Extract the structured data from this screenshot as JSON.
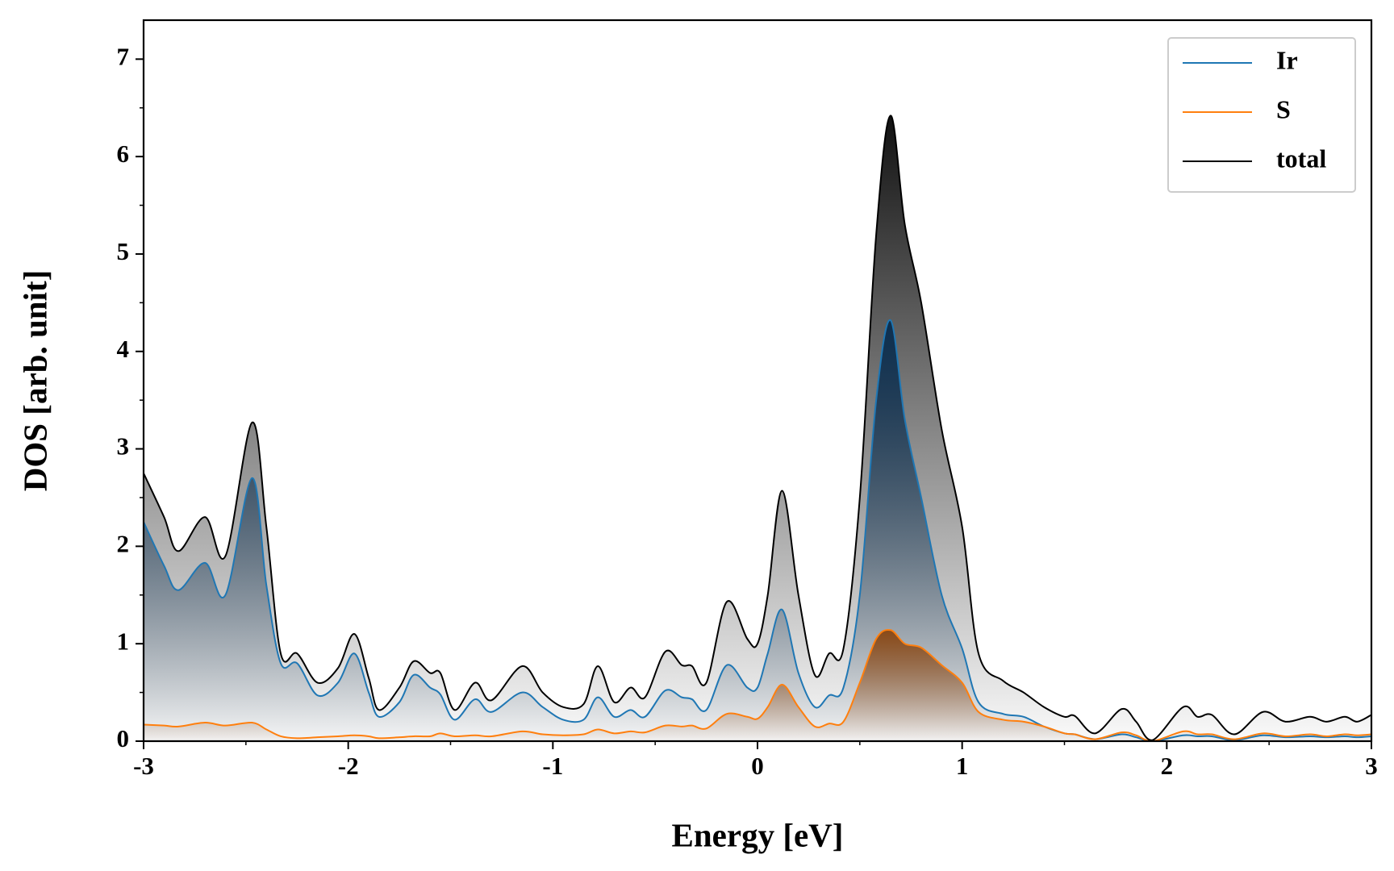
{
  "chart_data": {
    "type": "line",
    "xlabel": "Energy [eV]",
    "ylabel": "DOS [arb. unit]",
    "x": [
      -3.0,
      -2.9,
      -2.83,
      -2.7,
      -2.6,
      -2.47,
      -2.4,
      -2.33,
      -2.25,
      -2.15,
      -2.05,
      -1.97,
      -1.9,
      -1.85,
      -1.75,
      -1.68,
      -1.6,
      -1.55,
      -1.48,
      -1.38,
      -1.3,
      -1.15,
      -1.05,
      -0.95,
      -0.85,
      -0.78,
      -0.7,
      -0.62,
      -0.55,
      -0.45,
      -0.37,
      -0.32,
      -0.25,
      -0.15,
      -0.05,
      0.0,
      0.05,
      0.12,
      0.2,
      0.28,
      0.35,
      0.42,
      0.5,
      0.58,
      0.65,
      0.72,
      0.8,
      0.9,
      1.0,
      1.08,
      1.2,
      1.3,
      1.4,
      1.5,
      1.55,
      1.65,
      1.78,
      1.85,
      1.93,
      2.08,
      2.15,
      2.22,
      2.33,
      2.47,
      2.58,
      2.7,
      2.78,
      2.87,
      2.93,
      3.0
    ],
    "series": [
      {
        "name": "Ir",
        "color": "#1f77b4",
        "fill_color": "#0d2f4f",
        "values": [
          2.25,
          1.8,
          1.55,
          1.83,
          1.5,
          2.7,
          1.6,
          0.8,
          0.8,
          0.47,
          0.6,
          0.9,
          0.5,
          0.25,
          0.4,
          0.68,
          0.55,
          0.48,
          0.22,
          0.43,
          0.3,
          0.5,
          0.35,
          0.22,
          0.22,
          0.45,
          0.25,
          0.32,
          0.25,
          0.52,
          0.45,
          0.43,
          0.32,
          0.78,
          0.55,
          0.55,
          0.9,
          1.35,
          0.7,
          0.35,
          0.47,
          0.55,
          1.5,
          3.5,
          4.32,
          3.3,
          2.5,
          1.5,
          0.95,
          0.4,
          0.28,
          0.25,
          0.15,
          0.08,
          0.07,
          0.02,
          0.07,
          0.04,
          0.0,
          0.06,
          0.05,
          0.05,
          0.01,
          0.06,
          0.04,
          0.05,
          0.04,
          0.05,
          0.04,
          0.05
        ]
      },
      {
        "name": "S",
        "color": "#ff7f0e",
        "fill_color": "#8a4a18",
        "values": [
          0.17,
          0.16,
          0.15,
          0.19,
          0.16,
          0.19,
          0.12,
          0.05,
          0.03,
          0.04,
          0.05,
          0.06,
          0.05,
          0.03,
          0.04,
          0.05,
          0.05,
          0.08,
          0.05,
          0.06,
          0.05,
          0.1,
          0.07,
          0.06,
          0.07,
          0.12,
          0.08,
          0.1,
          0.09,
          0.16,
          0.15,
          0.16,
          0.13,
          0.28,
          0.25,
          0.23,
          0.35,
          0.58,
          0.35,
          0.15,
          0.18,
          0.2,
          0.6,
          1.05,
          1.14,
          1.0,
          0.96,
          0.78,
          0.6,
          0.3,
          0.22,
          0.2,
          0.15,
          0.08,
          0.07,
          0.02,
          0.09,
          0.06,
          0.0,
          0.1,
          0.07,
          0.07,
          0.02,
          0.08,
          0.05,
          0.07,
          0.05,
          0.07,
          0.06,
          0.07
        ]
      },
      {
        "name": "total",
        "color": "#000000",
        "fill_color": "#111111",
        "values": [
          2.75,
          2.3,
          1.95,
          2.3,
          1.9,
          3.27,
          2.2,
          0.9,
          0.9,
          0.6,
          0.75,
          1.1,
          0.65,
          0.32,
          0.55,
          0.82,
          0.7,
          0.7,
          0.32,
          0.6,
          0.42,
          0.77,
          0.5,
          0.35,
          0.38,
          0.77,
          0.4,
          0.55,
          0.45,
          0.92,
          0.78,
          0.77,
          0.6,
          1.43,
          1.05,
          1.0,
          1.5,
          2.57,
          1.5,
          0.68,
          0.9,
          0.95,
          2.5,
          5.2,
          6.42,
          5.3,
          4.5,
          3.2,
          2.2,
          0.9,
          0.62,
          0.5,
          0.35,
          0.25,
          0.26,
          0.08,
          0.33,
          0.2,
          0.01,
          0.35,
          0.25,
          0.27,
          0.07,
          0.3,
          0.2,
          0.25,
          0.2,
          0.25,
          0.2,
          0.27
        ]
      }
    ],
    "xlim": [
      -3,
      3
    ],
    "xticks": [
      -3,
      -2,
      -1,
      0,
      1,
      2,
      3
    ],
    "xticks_minor": [
      -2.5,
      -1.5,
      -0.5,
      0.5,
      1.5,
      2.5
    ],
    "ylim": [
      0,
      7.4
    ],
    "yticks": [
      0,
      1,
      2,
      3,
      4,
      5,
      6,
      7
    ],
    "yticks_minor": [
      0.5,
      1.5,
      2.5,
      3.5,
      4.5,
      5.5,
      6.5
    ],
    "legend": "upper right",
    "grid": false
  }
}
